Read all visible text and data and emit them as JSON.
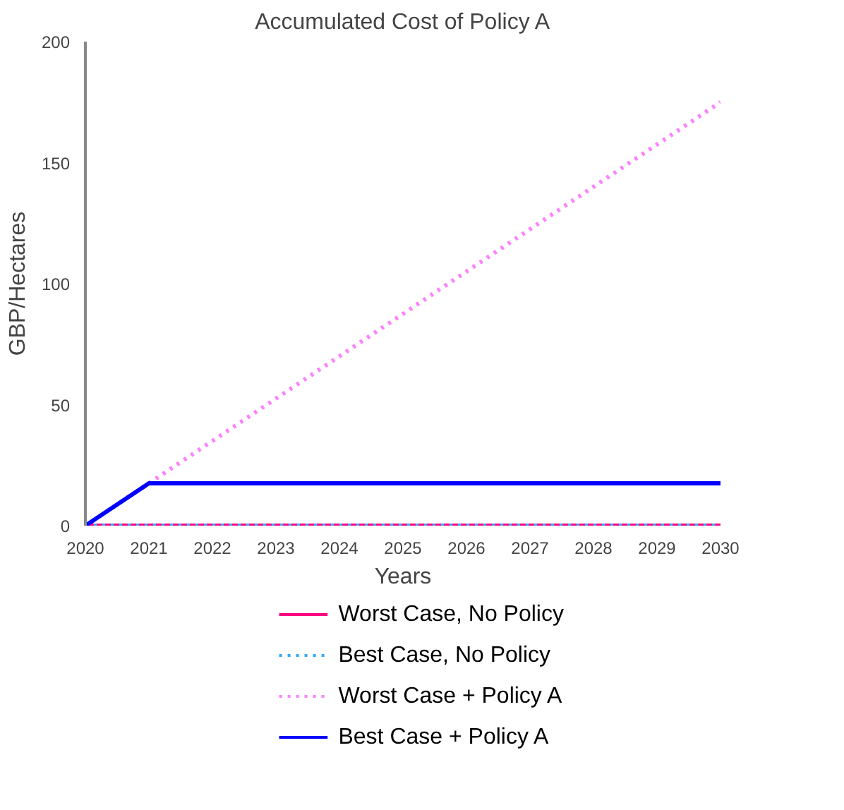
{
  "chart_data": {
    "type": "line",
    "title": "Accumulated Cost of Policy A",
    "xlabel": "Years",
    "ylabel": "GBP/Hectares",
    "x": [
      2020,
      2021,
      2022,
      2023,
      2024,
      2025,
      2026,
      2027,
      2028,
      2029,
      2030
    ],
    "series": [
      {
        "name": "Worst Case, No Policy",
        "color": "#ff0080",
        "line_style": "solid",
        "values": [
          0,
          0,
          0,
          0,
          0,
          0,
          0,
          0,
          0,
          0,
          0
        ]
      },
      {
        "name": "Best Case, No Policy",
        "color": "#33aaff",
        "line_style": "dotted",
        "values": [
          0,
          0,
          0,
          0,
          0,
          0,
          0,
          0,
          0,
          0,
          0
        ]
      },
      {
        "name": "Worst Case + Policy A",
        "color": "#ff80ff",
        "line_style": "dotted",
        "values": [
          0,
          17.5,
          35,
          52.5,
          70,
          87.5,
          105,
          122.5,
          140,
          157.5,
          175
        ]
      },
      {
        "name": "Best Case + Policy A",
        "color": "#0000ff",
        "line_style": "solid",
        "values": [
          0,
          17.5,
          17.5,
          17.5,
          17.5,
          17.5,
          17.5,
          17.5,
          17.5,
          17.5,
          17.5
        ]
      }
    ],
    "xlim": [
      2020,
      2030
    ],
    "ylim": [
      0,
      200
    ],
    "xticks": [
      2020,
      2021,
      2022,
      2023,
      2024,
      2025,
      2026,
      2027,
      2028,
      2029,
      2030
    ],
    "yticks": [
      0,
      50,
      100,
      150,
      200
    ],
    "grid": false,
    "legend": "bottom",
    "marker": "none"
  }
}
